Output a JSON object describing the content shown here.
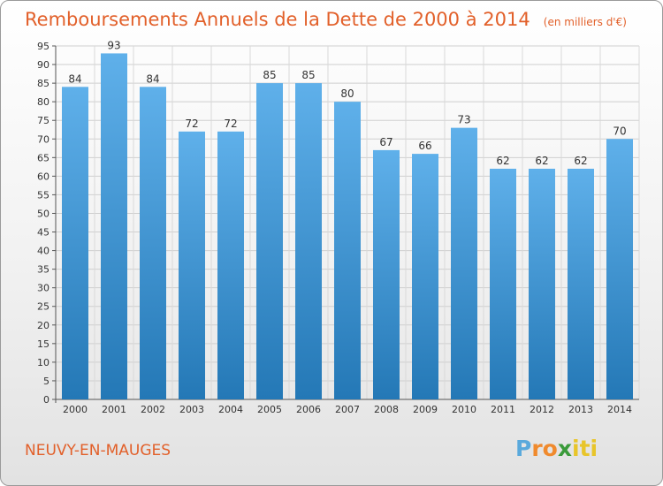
{
  "chart_data": {
    "type": "bar",
    "title": "Remboursements Annuels de la Dette de 2000 à 2014",
    "subtitle": "(en milliers d'€)",
    "categories": [
      "2000",
      "2001",
      "2002",
      "2003",
      "2004",
      "2005",
      "2006",
      "2007",
      "2008",
      "2009",
      "2010",
      "2011",
      "2012",
      "2013",
      "2014"
    ],
    "values": [
      84,
      93,
      84,
      72,
      72,
      85,
      85,
      80,
      67,
      66,
      73,
      62,
      62,
      62,
      70
    ],
    "ylim": [
      0,
      95
    ],
    "ytick_step": 5,
    "xlabel": "",
    "ylabel": "",
    "grid": true,
    "bar_color_top": "#5fb0ea",
    "bar_color_bottom": "#2478b6"
  },
  "footer": {
    "commune": "NEUVY-EN-MAUGES",
    "brand_letters": [
      "P",
      "r",
      "o",
      "x",
      "i",
      "t",
      "i"
    ],
    "brand_colors": [
      "#5aa9dc",
      "#f08a2d",
      "#f08a2d",
      "#3a9a3a",
      "#e8c52a",
      "#e8c52a",
      "#e8c52a"
    ]
  }
}
